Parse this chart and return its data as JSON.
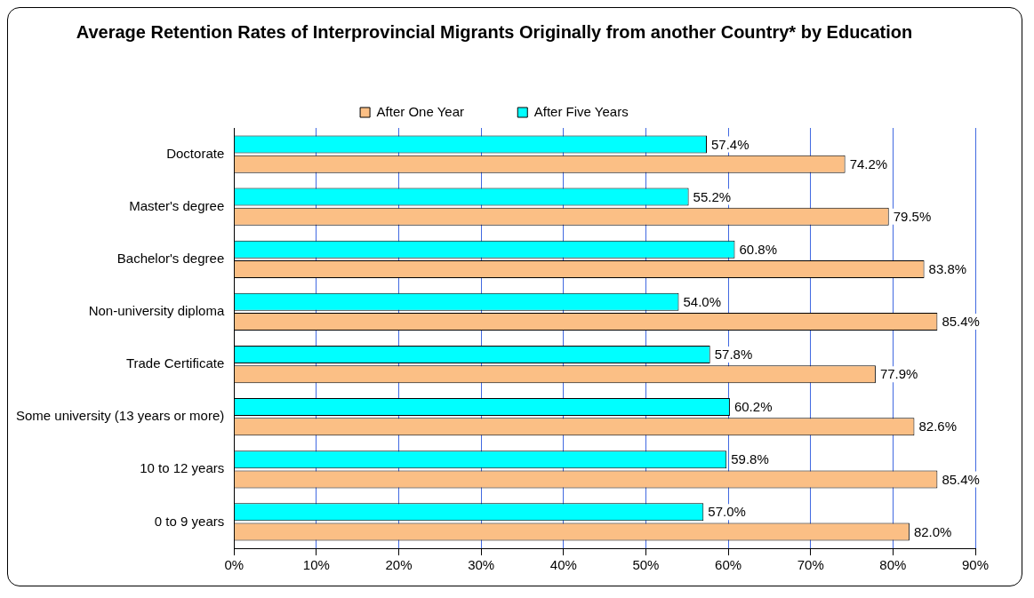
{
  "chart_data": {
    "type": "bar",
    "orientation": "horizontal",
    "title": "Average Retention Rates of Interprovincial Migrants Originally from another Country* by Education",
    "categories": [
      "Doctorate",
      "Master's degree",
      "Bachelor's degree",
      "Non-university diploma",
      "Trade Certificate",
      "Some university (13 years or more)",
      "10 to 12 years",
      "0 to 9 years"
    ],
    "series": [
      {
        "name": "After One Year",
        "color": "#fbbf85",
        "values": [
          74.2,
          79.5,
          83.8,
          85.4,
          77.9,
          82.6,
          85.4,
          82.0
        ],
        "value_labels": [
          "74.2%",
          "79.5%",
          "83.8%",
          "85.4%",
          "77.9%",
          "82.6%",
          "85.4%",
          "82.0%"
        ]
      },
      {
        "name": "After Five Years",
        "color": "#00ffff",
        "values": [
          57.4,
          55.2,
          60.8,
          54.0,
          57.8,
          60.2,
          59.8,
          57.0
        ],
        "value_labels": [
          "57.4%",
          "55.2%",
          "60.8%",
          "54.0%",
          "57.8%",
          "60.2%",
          "59.8%",
          "57.0%"
        ]
      }
    ],
    "xlim": [
      0,
      90
    ],
    "xticks": [
      {
        "value": 0,
        "label": "0%"
      },
      {
        "value": 10,
        "label": "10%"
      },
      {
        "value": 20,
        "label": "20%"
      },
      {
        "value": 30,
        "label": "30%"
      },
      {
        "value": 40,
        "label": "40%"
      },
      {
        "value": 50,
        "label": "50%"
      },
      {
        "value": 60,
        "label": "60%"
      },
      {
        "value": 70,
        "label": "70%"
      },
      {
        "value": 80,
        "label": "80%"
      },
      {
        "value": 90,
        "label": "90%"
      }
    ],
    "grid": "x",
    "legend": "top"
  }
}
